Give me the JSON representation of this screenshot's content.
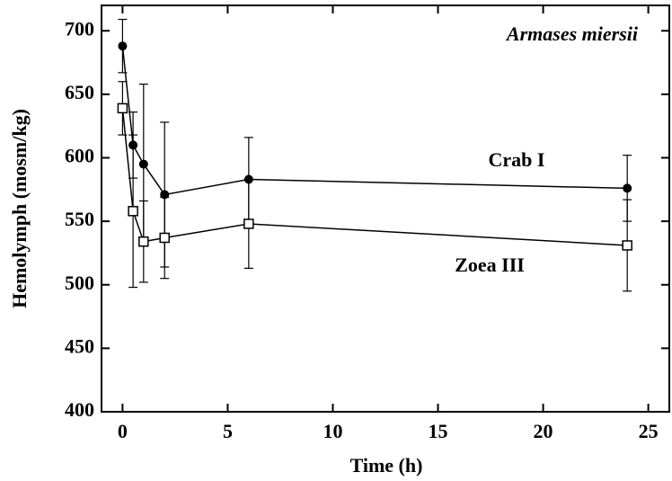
{
  "chart_data": {
    "type": "line",
    "xlabel": "Time (h)",
    "ylabel": "Hemolymph (mosm/kg)",
    "annotations": [
      "Armases miersii",
      "Crab I",
      "Zoea III"
    ],
    "xlim": [
      -1,
      26
    ],
    "xticks": [
      0,
      5,
      10,
      15,
      20,
      25
    ],
    "ylim": [
      400,
      720
    ],
    "yticks": [
      400,
      450,
      500,
      550,
      600,
      650,
      700
    ],
    "series": [
      {
        "name": "Crab I",
        "marker": "circle",
        "color": "#000000",
        "x": [
          0,
          0.5,
          1,
          2,
          6,
          24
        ],
        "values": [
          688,
          610,
          595,
          571,
          583,
          576
        ],
        "errors": [
          21,
          26,
          63,
          57,
          33,
          26
        ]
      },
      {
        "name": "Zoea III",
        "marker": "square",
        "color": "#000000",
        "x": [
          0,
          0.5,
          1,
          2,
          6,
          24
        ],
        "values": [
          639,
          558,
          534,
          537,
          548,
          531
        ],
        "errors": [
          21,
          60,
          32,
          32,
          35,
          36
        ]
      }
    ]
  }
}
